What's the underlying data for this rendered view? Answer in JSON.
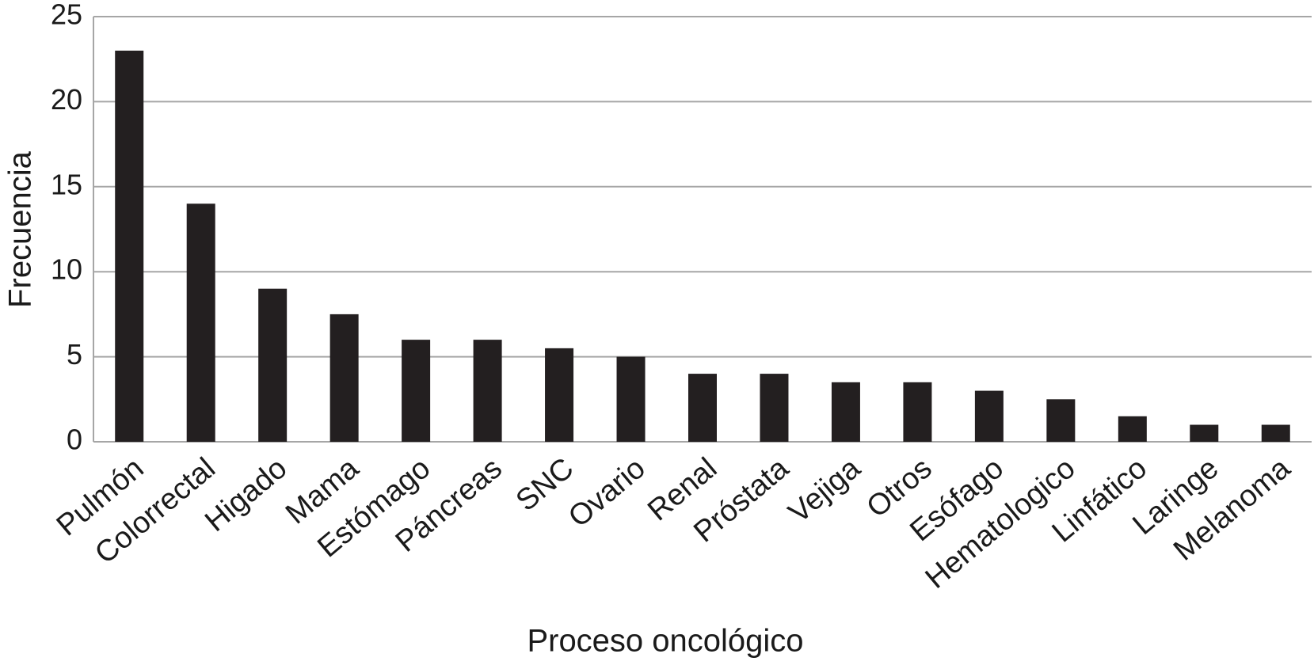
{
  "chart_data": {
    "type": "bar",
    "x_label": "Proceso oncológico",
    "y_label": "Frecuencia",
    "categories": [
      "Pulmón",
      "Colorrectal",
      "Higado",
      "Mama",
      "Estómago",
      "Páncreas",
      "SNC",
      "Ovario",
      "Renal",
      "Próstata",
      "Vejiga",
      "Otros",
      "Esófago",
      "Hematologico",
      "Linfático",
      "Laringe",
      "Melanoma"
    ],
    "values": [
      23,
      14,
      9,
      7.5,
      6,
      6,
      5.5,
      5,
      4,
      4,
      3.5,
      3.5,
      3,
      2.5,
      1.5,
      1,
      1
    ],
    "color": "#231f20",
    "ylim": [
      0,
      25
    ],
    "yticks": [
      0,
      5,
      10,
      15,
      20,
      25
    ],
    "grid": true
  }
}
